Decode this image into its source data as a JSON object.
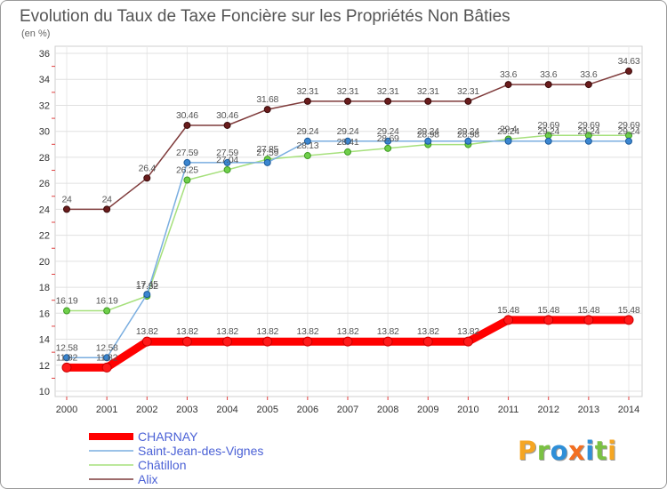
{
  "chart_data": {
    "type": "line",
    "title": "Evolution du Taux de Taxe Foncière sur les Propriétés Non Bâties",
    "subtitle": "(en %)",
    "xlabel": "",
    "ylabel": "",
    "x": [
      2000,
      2001,
      2002,
      2003,
      2004,
      2005,
      2006,
      2007,
      2008,
      2009,
      2010,
      2011,
      2012,
      2013,
      2014
    ],
    "ylim": [
      10,
      36
    ],
    "yticks": [
      10,
      12,
      14,
      16,
      18,
      20,
      22,
      24,
      26,
      28,
      30,
      32,
      34,
      36
    ],
    "grid": true,
    "legend_position": "bottom-left",
    "series": [
      {
        "name": "CHARNAY",
        "highlight": true,
        "line_color": "#ff0000",
        "marker_color": "#ff1a1a",
        "marker_stroke": "#cc0000",
        "values": [
          11.82,
          11.82,
          13.82,
          13.82,
          13.82,
          13.82,
          13.82,
          13.82,
          13.82,
          13.82,
          13.82,
          15.48,
          15.48,
          15.48,
          15.48
        ]
      },
      {
        "name": "Saint-Jean-des-Vignes",
        "highlight": false,
        "line_color": "#7aaee0",
        "marker_color": "#3b86d0",
        "marker_stroke": "#1d5b9a",
        "values": [
          12.58,
          12.58,
          17.45,
          27.59,
          27.59,
          27.59,
          29.24,
          29.24,
          29.24,
          29.24,
          29.24,
          29.24,
          29.24,
          29.24,
          29.24
        ]
      },
      {
        "name": "Châtillon",
        "highlight": false,
        "line_color": "#a6e07c",
        "marker_color": "#6fcf4a",
        "marker_stroke": "#3e9a22",
        "values": [
          16.19,
          16.19,
          17.32,
          26.25,
          27.04,
          27.85,
          28.13,
          28.41,
          28.69,
          28.98,
          28.98,
          29.4,
          29.69,
          29.69,
          29.69
        ]
      },
      {
        "name": "Alix",
        "highlight": false,
        "line_color": "#7f3b3b",
        "marker_color": "#6a1c1c",
        "marker_stroke": "#3a0c0c",
        "values": [
          24,
          24,
          26.4,
          30.46,
          30.46,
          31.68,
          32.31,
          32.31,
          32.31,
          32.31,
          32.31,
          33.6,
          33.6,
          33.6,
          34.63
        ]
      }
    ]
  },
  "logo": {
    "letters": [
      "P",
      "r",
      "o",
      "x",
      "i",
      "t",
      "i"
    ],
    "colors": [
      "#f5a623",
      "#7ac143",
      "#2f8fd8",
      "#f36f21",
      "#2f8fd8",
      "#7ac143",
      "#f5a623"
    ]
  }
}
